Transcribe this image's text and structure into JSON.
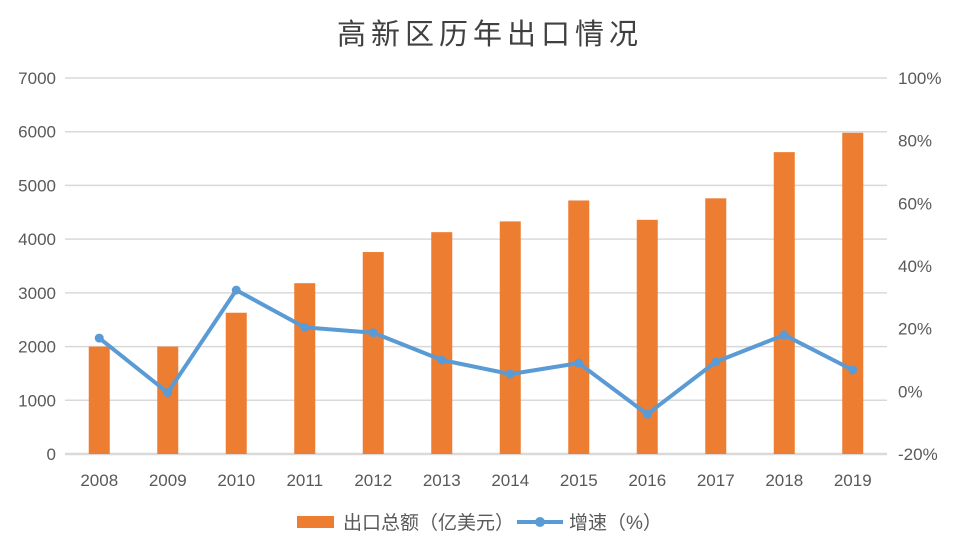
{
  "title": "高新区历年出口情况",
  "colors": {
    "bar": "#ED7D31",
    "line": "#5B9BD5",
    "grid": "#D9D9D9",
    "axis_line": "#D9D9D9",
    "axis_text": "#595959",
    "title_text": "#404040",
    "background": "#FFFFFF"
  },
  "chart_data": {
    "type": "bar",
    "subtype": "combo-bar-line-dual-axis",
    "title": "高新区历年出口情况",
    "categories": [
      "2008",
      "2009",
      "2010",
      "2011",
      "2012",
      "2013",
      "2014",
      "2015",
      "2016",
      "2017",
      "2018",
      "2019"
    ],
    "series": [
      {
        "name": "出口总额（亿美元）",
        "type": "bar",
        "axis": "left",
        "color": "#ED7D31",
        "values": [
          2000,
          2000,
          2630,
          3180,
          3760,
          4130,
          4330,
          4720,
          4360,
          4760,
          5620,
          5980
        ]
      },
      {
        "name": "增速（%）",
        "type": "line",
        "axis": "right",
        "color": "#5B9BD5",
        "marker": "circle",
        "values": [
          17.0,
          -0.4,
          32.3,
          20.4,
          18.7,
          10.0,
          5.5,
          9.0,
          -7.3,
          9.4,
          18.0,
          6.8
        ]
      }
    ],
    "left_axis": {
      "min": 0,
      "max": 7000,
      "step": 1000,
      "tick_labels": [
        "0",
        "1000",
        "2000",
        "3000",
        "4000",
        "5000",
        "6000",
        "7000"
      ]
    },
    "right_axis": {
      "min": -20,
      "max": 100,
      "step": 20,
      "tick_labels": [
        "-20%",
        "0%",
        "20%",
        "40%",
        "60%",
        "80%",
        "100%"
      ]
    },
    "grid": true,
    "legend_position": "bottom"
  },
  "legend": {
    "items": [
      {
        "label": "出口总额（亿美元）",
        "swatch": "bar"
      },
      {
        "label": "增速（%）",
        "swatch": "line-with-marker"
      }
    ]
  }
}
